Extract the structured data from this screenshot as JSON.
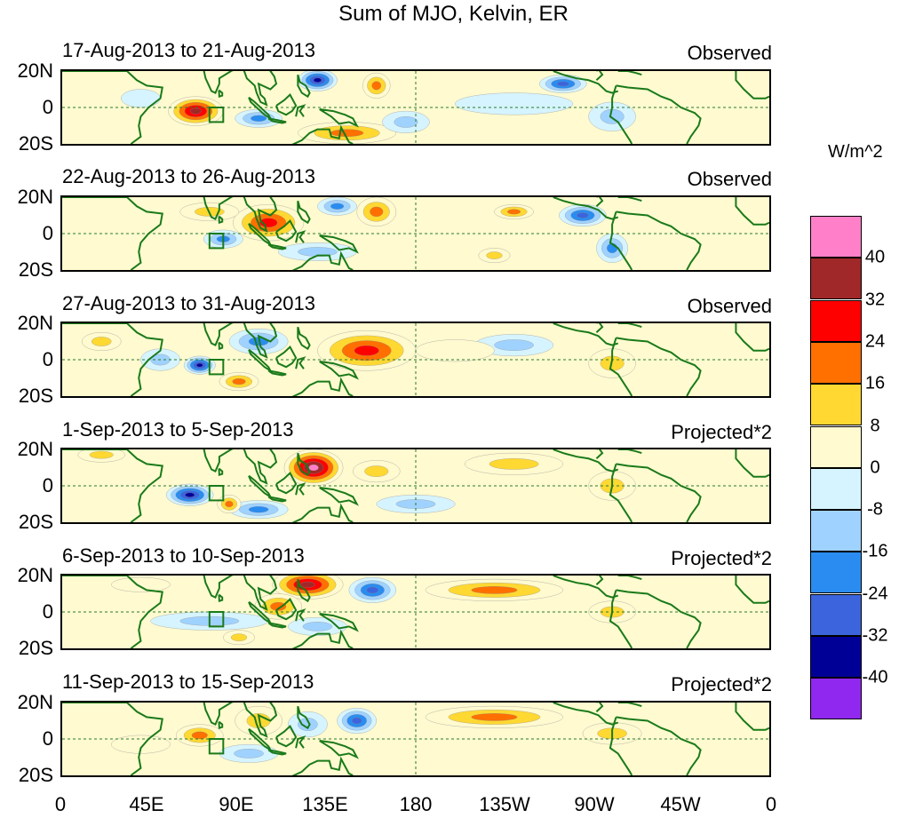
{
  "title": "Sum of MJO, Kelvin, ER",
  "units": "W/m^2",
  "lat_labels": [
    "20N",
    "0",
    "20S"
  ],
  "lon_labels": [
    "0",
    "45E",
    "90E",
    "135E",
    "180",
    "135W",
    "90W",
    "45W",
    "0"
  ],
  "colorbar": {
    "colors": [
      "#ff80c8",
      "#a02828",
      "#ff0000",
      "#ff7000",
      "#ffd832",
      "#fffad0",
      "#d6f4ff",
      "#a0d2ff",
      "#2a8cf0",
      "#3c64dc",
      "#000096",
      "#9028f0"
    ],
    "labels": [
      "40",
      "32",
      "24",
      "16",
      "8",
      "0",
      "-8",
      "-16",
      "-24",
      "-32",
      "-40"
    ]
  },
  "panels": [
    {
      "date": "17-Aug-2013 to 21-Aug-2013",
      "type": "Observed"
    },
    {
      "date": "22-Aug-2013 to 26-Aug-2013",
      "type": "Observed"
    },
    {
      "date": "27-Aug-2013 to 31-Aug-2013",
      "type": "Observed"
    },
    {
      "date": "1-Sep-2013 to 5-Sep-2013",
      "type": "Projected*2"
    },
    {
      "date": "6-Sep-2013 to 10-Sep-2013",
      "type": "Projected*2"
    },
    {
      "date": "11-Sep-2013 to 15-Sep-2013",
      "type": "Projected*2"
    }
  ],
  "anomaly_features": [
    [
      {
        "lon": 68,
        "lat": -2,
        "rx": 14,
        "ry": 8,
        "v": 36
      },
      {
        "lon": 130,
        "lat": 15,
        "rx": 10,
        "ry": 6,
        "v": -34
      },
      {
        "lon": 160,
        "lat": 12,
        "rx": 7,
        "ry": 7,
        "v": 20
      },
      {
        "lon": 145,
        "lat": -14,
        "rx": 25,
        "ry": 6,
        "v": 22
      },
      {
        "lon": 100,
        "lat": -6,
        "rx": 12,
        "ry": 5,
        "v": -22
      },
      {
        "lon": 255,
        "lat": 13,
        "rx": 12,
        "ry": 5,
        "v": -26
      },
      {
        "lon": 175,
        "lat": -8,
        "rx": 12,
        "ry": 6,
        "v": -14
      },
      {
        "lon": 280,
        "lat": -5,
        "rx": 12,
        "ry": 8,
        "v": -12
      },
      {
        "lon": 40,
        "lat": 5,
        "rx": 10,
        "ry": 5,
        "v": -8
      },
      {
        "lon": 230,
        "lat": 2,
        "rx": 30,
        "ry": 6,
        "v": -6
      }
    ],
    [
      {
        "lon": 105,
        "lat": 6,
        "rx": 18,
        "ry": 10,
        "v": 30
      },
      {
        "lon": 75,
        "lat": 12,
        "rx": 15,
        "ry": 5,
        "v": 14
      },
      {
        "lon": 160,
        "lat": 12,
        "rx": 10,
        "ry": 8,
        "v": 20
      },
      {
        "lon": 82,
        "lat": -3,
        "rx": 10,
        "ry": 5,
        "v": -22
      },
      {
        "lon": 140,
        "lat": 15,
        "rx": 10,
        "ry": 5,
        "v": -24
      },
      {
        "lon": 265,
        "lat": 10,
        "rx": 12,
        "ry": 6,
        "v": -26
      },
      {
        "lon": 230,
        "lat": 12,
        "rx": 10,
        "ry": 4,
        "v": 18
      },
      {
        "lon": 280,
        "lat": -8,
        "rx": 8,
        "ry": 8,
        "v": -20
      },
      {
        "lon": 130,
        "lat": -10,
        "rx": 20,
        "ry": 5,
        "v": -12
      },
      {
        "lon": 220,
        "lat": -12,
        "rx": 8,
        "ry": 4,
        "v": 12
      }
    ],
    [
      {
        "lon": 155,
        "lat": 5,
        "rx": 25,
        "ry": 11,
        "v": 30
      },
      {
        "lon": 70,
        "lat": -3,
        "rx": 8,
        "ry": 5,
        "v": -36
      },
      {
        "lon": 50,
        "lat": 0,
        "rx": 10,
        "ry": 6,
        "v": -14
      },
      {
        "lon": 90,
        "lat": -12,
        "rx": 10,
        "ry": 5,
        "v": 18
      },
      {
        "lon": 100,
        "lat": 10,
        "rx": 15,
        "ry": 7,
        "v": -18
      },
      {
        "lon": 230,
        "lat": 8,
        "rx": 20,
        "ry": 6,
        "v": -14
      },
      {
        "lon": 280,
        "lat": -2,
        "rx": 12,
        "ry": 8,
        "v": 10
      },
      {
        "lon": 200,
        "lat": 5,
        "rx": 20,
        "ry": 6,
        "v": 8
      },
      {
        "lon": 20,
        "lat": 10,
        "rx": 10,
        "ry": 5,
        "v": 10
      }
    ],
    [
      {
        "lon": 128,
        "lat": 10,
        "rx": 15,
        "ry": 10,
        "v": 44
      },
      {
        "lon": 65,
        "lat": -5,
        "rx": 12,
        "ry": 6,
        "v": -36
      },
      {
        "lon": 230,
        "lat": 12,
        "rx": 25,
        "ry": 6,
        "v": 14
      },
      {
        "lon": 100,
        "lat": -13,
        "rx": 15,
        "ry": 5,
        "v": -18
      },
      {
        "lon": 85,
        "lat": -10,
        "rx": 6,
        "ry": 5,
        "v": 18
      },
      {
        "lon": 20,
        "lat": 17,
        "rx": 12,
        "ry": 4,
        "v": 14
      },
      {
        "lon": 280,
        "lat": 0,
        "rx": 12,
        "ry": 8,
        "v": 12
      },
      {
        "lon": 180,
        "lat": -10,
        "rx": 20,
        "ry": 5,
        "v": -10
      },
      {
        "lon": 160,
        "lat": 8,
        "rx": 12,
        "ry": 6,
        "v": 16
      }
    ],
    [
      {
        "lon": 125,
        "lat": 15,
        "rx": 18,
        "ry": 8,
        "v": 34
      },
      {
        "lon": 110,
        "lat": 3,
        "rx": 12,
        "ry": 7,
        "v": 18
      },
      {
        "lon": 158,
        "lat": 12,
        "rx": 12,
        "ry": 7,
        "v": -32
      },
      {
        "lon": 220,
        "lat": 12,
        "rx": 35,
        "ry": 6,
        "v": 22
      },
      {
        "lon": 75,
        "lat": -5,
        "rx": 30,
        "ry": 5,
        "v": -10
      },
      {
        "lon": 130,
        "lat": -8,
        "rx": 15,
        "ry": 5,
        "v": -12
      },
      {
        "lon": 280,
        "lat": 0,
        "rx": 12,
        "ry": 6,
        "v": 12
      },
      {
        "lon": 90,
        "lat": -14,
        "rx": 8,
        "ry": 4,
        "v": 10
      },
      {
        "lon": 40,
        "lat": 15,
        "rx": 15,
        "ry": 4,
        "v": 8
      }
    ],
    [
      {
        "lon": 70,
        "lat": 2,
        "rx": 12,
        "ry": 6,
        "v": 22
      },
      {
        "lon": 150,
        "lat": 10,
        "rx": 10,
        "ry": 7,
        "v": -28
      },
      {
        "lon": 220,
        "lat": 12,
        "rx": 35,
        "ry": 6,
        "v": 18
      },
      {
        "lon": 100,
        "lat": 10,
        "rx": 12,
        "ry": 8,
        "v": 16
      },
      {
        "lon": 125,
        "lat": 8,
        "rx": 10,
        "ry": 7,
        "v": -14
      },
      {
        "lon": 95,
        "lat": -8,
        "rx": 15,
        "ry": 5,
        "v": -12
      },
      {
        "lon": 40,
        "lat": -3,
        "rx": 15,
        "ry": 5,
        "v": 8
      },
      {
        "lon": 280,
        "lat": 3,
        "rx": 15,
        "ry": 6,
        "v": 10
      }
    ]
  ],
  "reference_box": {
    "lon": [
      75,
      82
    ],
    "lat": [
      -8,
      0
    ]
  }
}
